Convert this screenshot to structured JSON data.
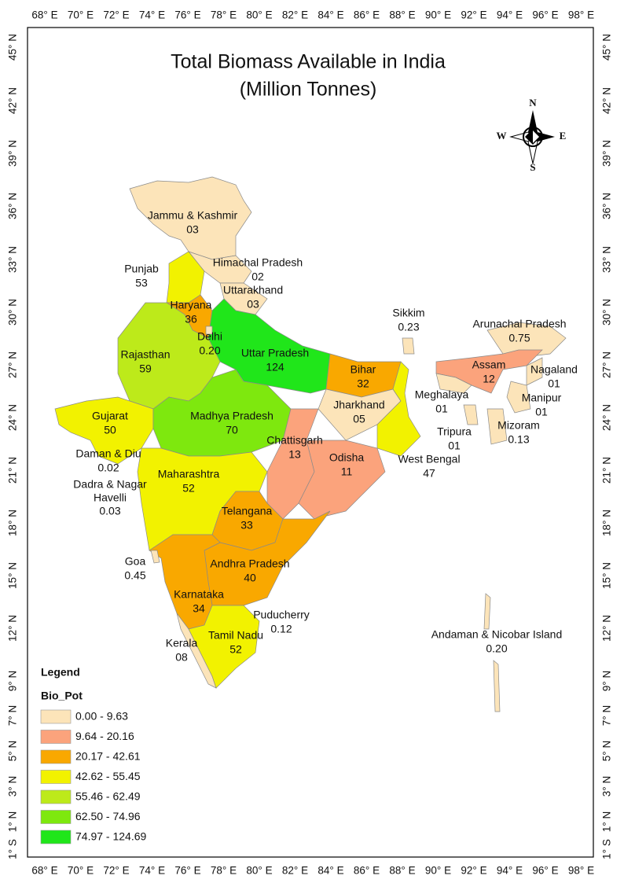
{
  "title": [
    "Total Biomass Available in India",
    "(Million Tonnes)"
  ],
  "compass": {
    "n": "N",
    "s": "S",
    "e": "E",
    "w": "W"
  },
  "graticule": {
    "longitudes": [
      "68° E",
      "70° E",
      "72° E",
      "74° E",
      "76° E",
      "78° E",
      "80° E",
      "82° E",
      "84° E",
      "86° E",
      "88° E",
      "90° E",
      "92° E",
      "94° E",
      "96° E",
      "98° E"
    ],
    "latitudes": [
      "45° N",
      "42° N",
      "39° N",
      "36° N",
      "33° N",
      "30° N",
      "27° N",
      "24° N",
      "21° N",
      "18° N",
      "15° N",
      "12° N",
      "9° N",
      "7° N",
      "5° N",
      "3° N",
      "1° N",
      "1° S"
    ]
  },
  "regions": [
    {
      "name": "Jammu & Kashmir",
      "value": "03"
    },
    {
      "name": "Himachal Pradesh",
      "value": "02"
    },
    {
      "name": "Punjab",
      "value": "53"
    },
    {
      "name": "Uttarakhand",
      "value": "03"
    },
    {
      "name": "Haryana",
      "value": "36"
    },
    {
      "name": "Delhi",
      "value": "0.20"
    },
    {
      "name": "Uttar Pradesh",
      "value": "124"
    },
    {
      "name": "Rajasthan",
      "value": "59"
    },
    {
      "name": "Bihar",
      "value": "32"
    },
    {
      "name": "Sikkim",
      "value": "0.23"
    },
    {
      "name": "Arunachal Pradesh",
      "value": "0.75"
    },
    {
      "name": "Assam",
      "value": "12"
    },
    {
      "name": "Nagaland",
      "value": "01"
    },
    {
      "name": "Meghalaya",
      "value": "01"
    },
    {
      "name": "Manipur",
      "value": "01"
    },
    {
      "name": "Jharkhand",
      "value": "05"
    },
    {
      "name": "Gujarat",
      "value": "50"
    },
    {
      "name": "Madhya Pradesh",
      "value": "70"
    },
    {
      "name": "Chattisgarh",
      "value": "13"
    },
    {
      "name": "Tripura",
      "value": "01"
    },
    {
      "name": "Mizoram",
      "value": "0.13"
    },
    {
      "name": "Daman & Diu",
      "value": "0.02"
    },
    {
      "name": "Odisha",
      "value": "11"
    },
    {
      "name": "West Bengal",
      "value": "47"
    },
    {
      "name": "Maharashtra",
      "value": "52"
    },
    {
      "name": [
        "Dadra & Nagar",
        "Havelli"
      ],
      "value": "0.03"
    },
    {
      "name": "Telangana",
      "value": "33"
    },
    {
      "name": "Goa",
      "value": "0.45"
    },
    {
      "name": "Andhra Pradesh",
      "value": "40"
    },
    {
      "name": "Karnataka",
      "value": "34"
    },
    {
      "name": "Puducherry",
      "value": "0.12"
    },
    {
      "name": "Andaman & Nicobar Island",
      "value": "0.20"
    },
    {
      "name": "Tamil Nadu",
      "value": "52"
    },
    {
      "name": "Kerala",
      "value": "08"
    }
  ],
  "legend": {
    "title": "Legend",
    "field": "Bio_Pot",
    "classes": [
      {
        "label": "0.00 - 9.63",
        "color": "#fce4b9"
      },
      {
        "label": "9.64 - 20.16",
        "color": "#fba37c"
      },
      {
        "label": "20.17 - 42.61",
        "color": "#f9a800"
      },
      {
        "label": "42.62 - 55.45",
        "color": "#f2f200"
      },
      {
        "label": "55.46 - 62.49",
        "color": "#bdea1a"
      },
      {
        "label": "62.50 - 74.96",
        "color": "#7ee80e"
      },
      {
        "label": "74.97 - 124.69",
        "color": "#20e61a"
      }
    ]
  }
}
